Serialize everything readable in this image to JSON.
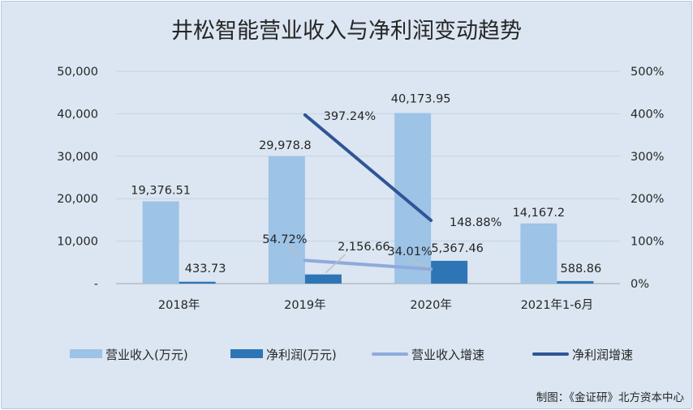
{
  "chart_data": {
    "type": "bar",
    "title": "井松智能营业收入与净利润变动趋势",
    "categories": [
      "2018年",
      "2019年",
      "2020年",
      "2021年1-6月"
    ],
    "series": [
      {
        "name": "营业收入(万元)",
        "kind": "bar",
        "axis": "left",
        "color": "#9dc3e6",
        "values": [
          19376.51,
          29978.8,
          40173.95,
          14167.2
        ],
        "labels": [
          "19,376.51",
          "29,978.8",
          "40,173.95",
          "14,167.2"
        ]
      },
      {
        "name": "净利润(万元)",
        "kind": "bar",
        "axis": "left",
        "color": "#2e75b6",
        "values": [
          433.73,
          2156.66,
          5367.46,
          588.86
        ],
        "labels": [
          "433.73",
          "2,156.66",
          "5,367.46",
          "588.86"
        ]
      },
      {
        "name": "营业收入增速",
        "kind": "line",
        "axis": "right",
        "color": "#8faadc",
        "values": [
          null,
          54.72,
          34.01,
          null
        ],
        "labels": [
          null,
          "54.72%",
          "34.01%",
          null
        ]
      },
      {
        "name": "净利润增速",
        "kind": "line",
        "axis": "right",
        "color": "#2f5597",
        "values": [
          null,
          397.24,
          148.88,
          null
        ],
        "labels": [
          null,
          "397.24%",
          "148.88%",
          null
        ]
      }
    ],
    "y_left": {
      "min": 0,
      "max": 50000,
      "ticks": [
        "-",
        "10,000",
        "20,000",
        "30,000",
        "40,000",
        "50,000"
      ]
    },
    "y_right": {
      "min": 0,
      "max": 500,
      "ticks": [
        "0%",
        "100%",
        "200%",
        "300%",
        "400%",
        "500%"
      ]
    },
    "grid": true,
    "legend_position": "bottom",
    "credit": "制图：《金证研》北方资本中心"
  }
}
